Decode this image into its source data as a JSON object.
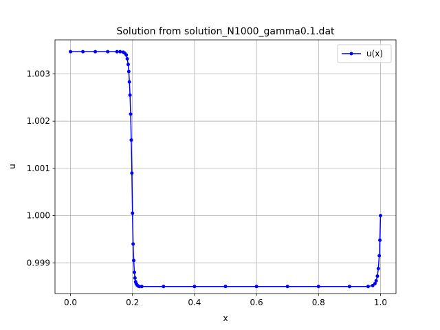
{
  "chart_data": {
    "type": "line",
    "title": "Solution from solution_N1000_gamma0.1.dat",
    "xlabel": "x",
    "ylabel": "u",
    "xlim": [
      -0.05,
      1.05
    ],
    "ylim": [
      0.99835,
      1.00372
    ],
    "xticks": [
      0.0,
      0.2,
      0.4,
      0.6,
      0.8,
      1.0
    ],
    "xtick_labels": [
      "0.0",
      "0.2",
      "0.4",
      "0.6",
      "0.8",
      "1.0"
    ],
    "yticks": [
      0.999,
      1.0,
      1.001,
      1.002,
      1.003
    ],
    "ytick_labels": [
      "0.999",
      "1.000",
      "1.001",
      "1.002",
      "1.003"
    ],
    "grid": true,
    "legend": "top-right",
    "series": [
      {
        "name": "u(x)",
        "color": "#0000ff",
        "marker": "circle",
        "x": [
          0.0,
          0.04,
          0.08,
          0.12,
          0.15,
          0.16,
          0.17,
          0.175,
          0.18,
          0.183,
          0.186,
          0.188,
          0.19,
          0.192,
          0.194,
          0.196,
          0.198,
          0.2,
          0.202,
          0.204,
          0.206,
          0.208,
          0.21,
          0.212,
          0.215,
          0.218,
          0.222,
          0.23,
          0.3,
          0.4,
          0.5,
          0.6,
          0.7,
          0.8,
          0.9,
          0.96,
          0.975,
          0.982,
          0.986,
          0.99,
          0.993,
          0.996,
          0.998,
          1.0
        ],
        "y": [
          1.00347,
          1.00347,
          1.00347,
          1.00347,
          1.00347,
          1.00347,
          1.00346,
          1.00344,
          1.0034,
          1.00332,
          1.0032,
          1.00305,
          1.00283,
          1.00255,
          1.00215,
          1.0016,
          1.0009,
          1.00005,
          0.9994,
          0.99905,
          0.9988,
          0.99868,
          0.9986,
          0.99856,
          0.99853,
          0.99851,
          0.9985,
          0.9985,
          0.9985,
          0.9985,
          0.9985,
          0.9985,
          0.9985,
          0.9985,
          0.9985,
          0.9985,
          0.99852,
          0.99856,
          0.99862,
          0.99872,
          0.99888,
          0.99915,
          0.99948,
          1.0
        ]
      }
    ]
  }
}
